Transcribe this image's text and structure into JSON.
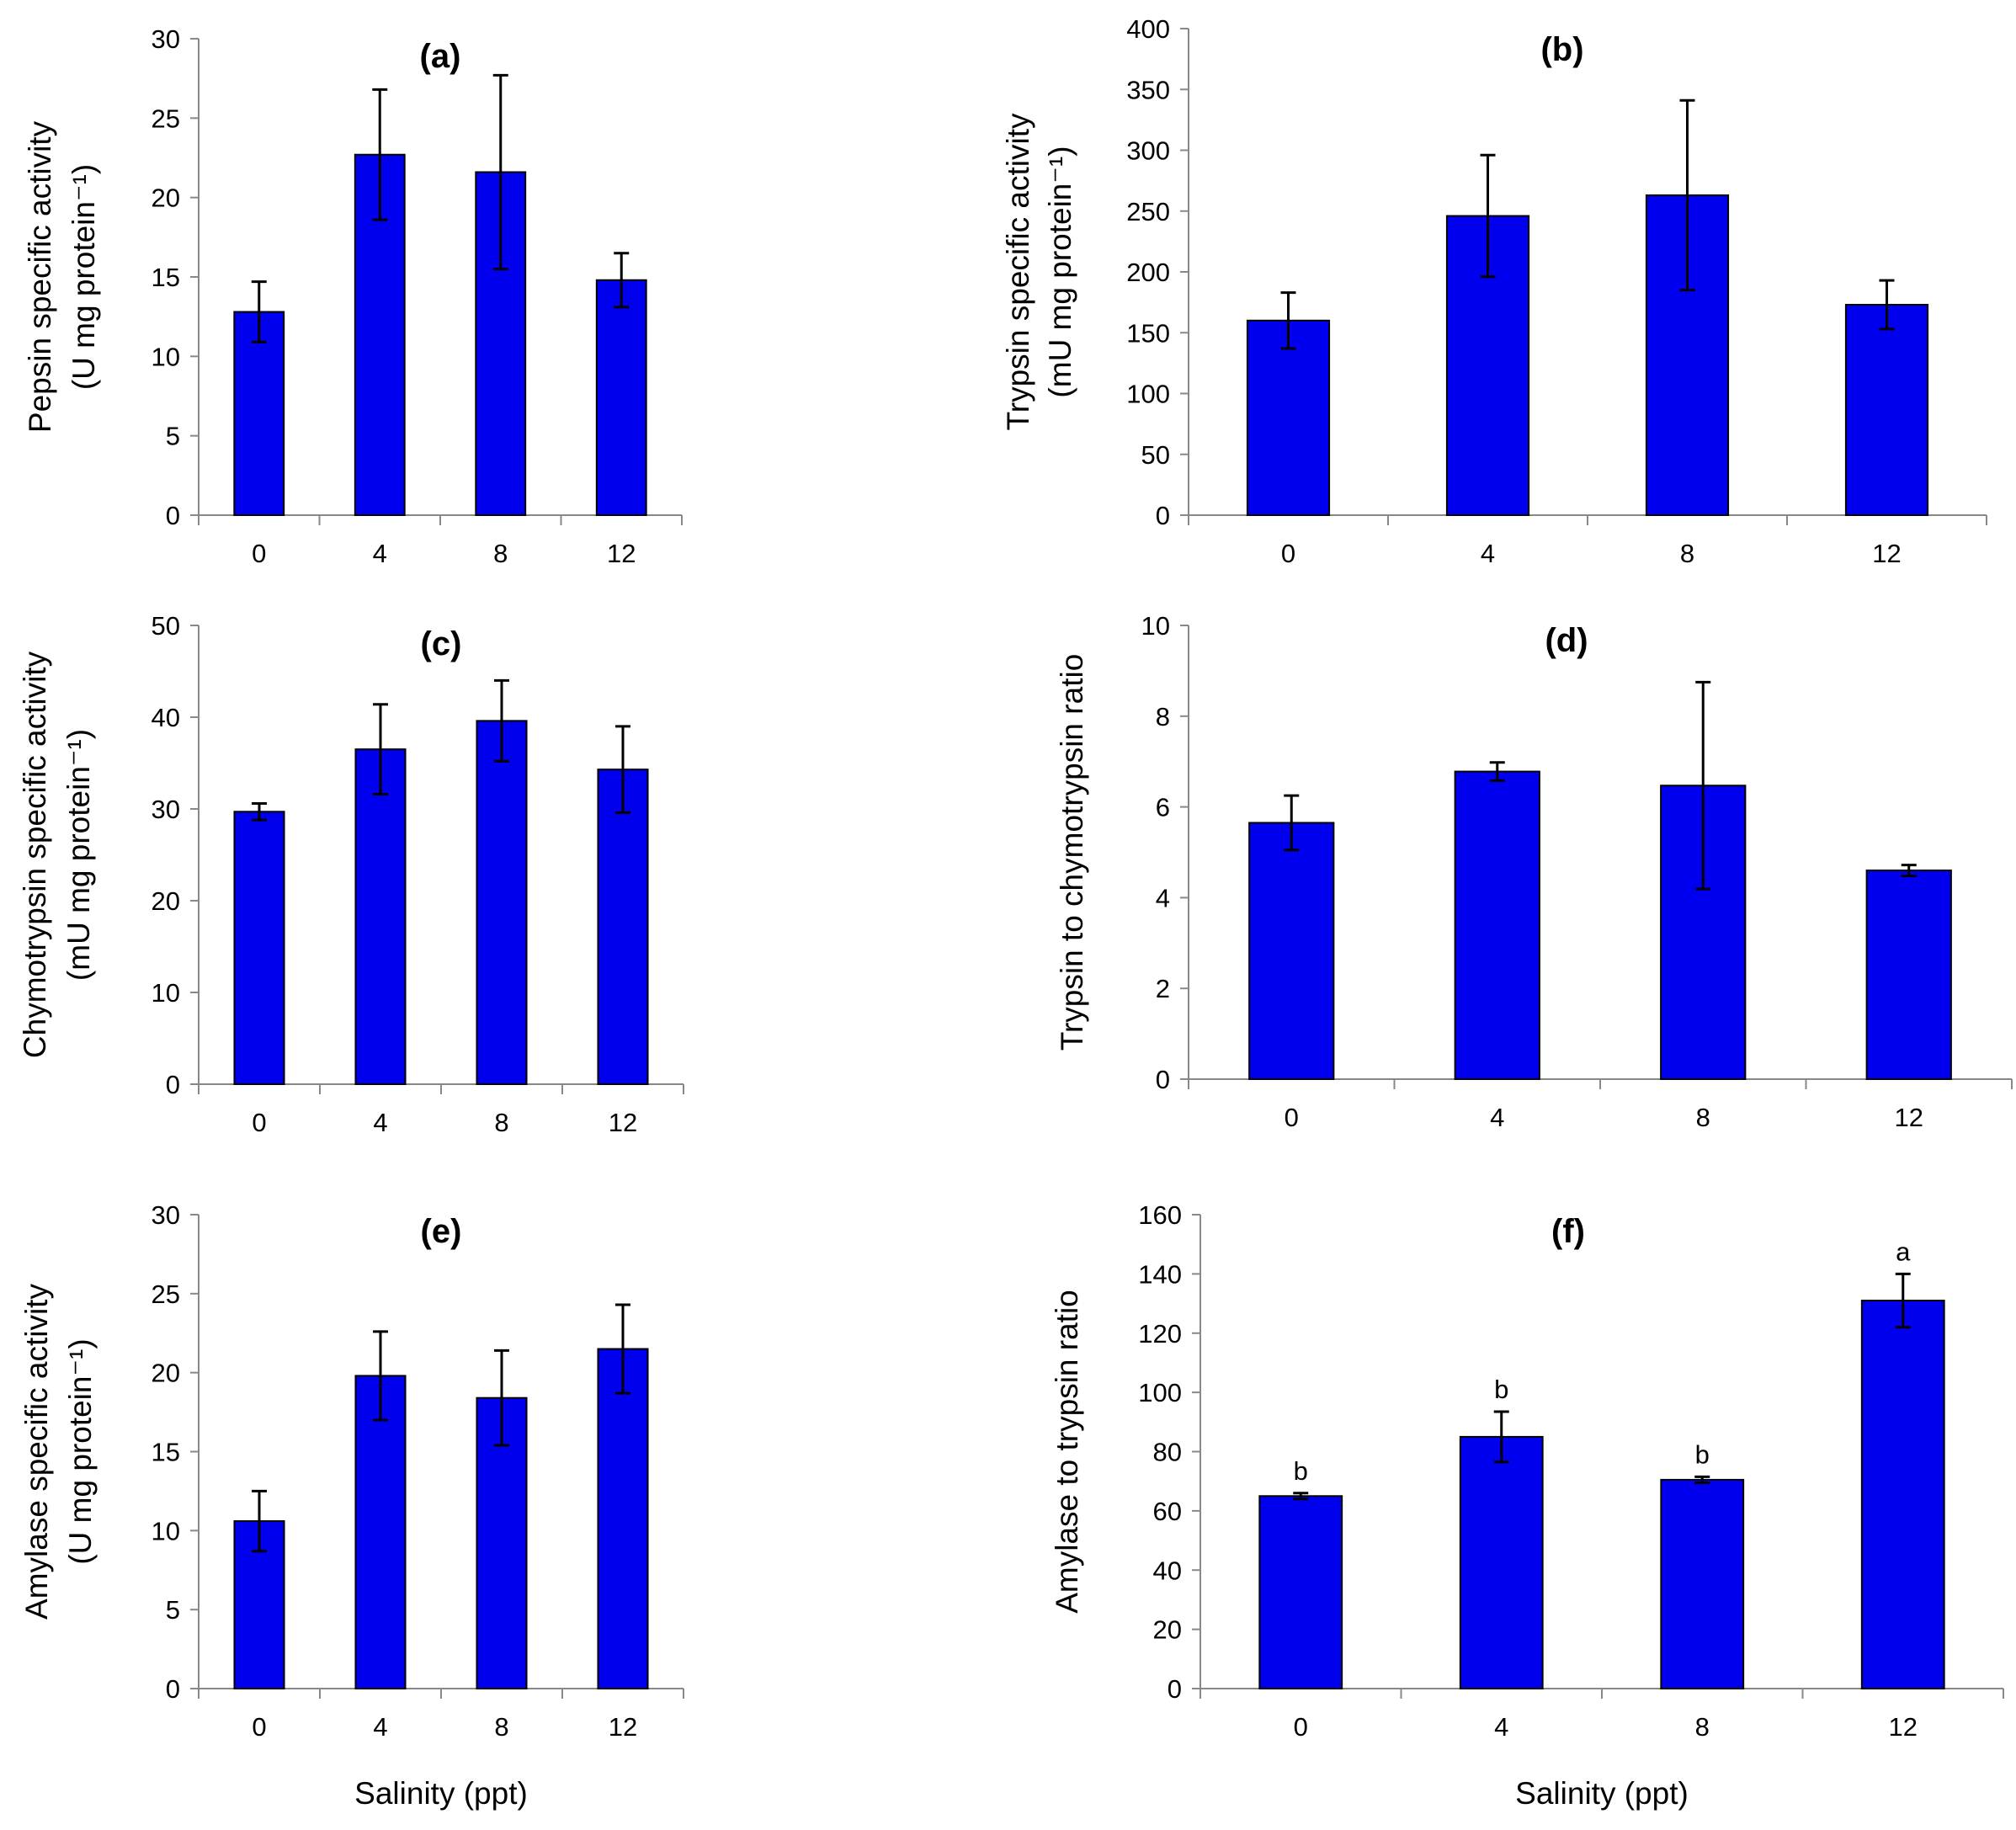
{
  "chart_data": [
    {
      "type": "bar",
      "title": "(a)",
      "categories": [
        "0",
        "4",
        "8",
        "12"
      ],
      "values": [
        12.8,
        22.7,
        21.6,
        14.8
      ],
      "errors": [
        1.9,
        4.1,
        6.1,
        1.7
      ],
      "ylabel_lines": [
        "Pepsin specific activity",
        "(U mg protein⁻¹)"
      ],
      "xlabel": "",
      "ylim": [
        0,
        30
      ],
      "yticks": [
        0,
        5,
        10,
        15,
        20,
        25,
        30
      ],
      "grid": false,
      "bar_color": "#0000EE"
    },
    {
      "type": "bar",
      "title": "(b)",
      "categories": [
        "0",
        "4",
        "8",
        "12"
      ],
      "values": [
        160,
        246,
        263,
        173
      ],
      "errors": [
        23,
        50,
        78,
        20
      ],
      "ylabel_lines": [
        "Trypsin specific activity",
        "(mU mg protein⁻¹)"
      ],
      "xlabel": "",
      "ylim": [
        0,
        400
      ],
      "yticks": [
        0,
        50,
        100,
        150,
        200,
        250,
        300,
        350,
        400
      ],
      "grid": false,
      "bar_color": "#0000EE"
    },
    {
      "type": "bar",
      "title": "(c)",
      "categories": [
        "0",
        "4",
        "8",
        "12"
      ],
      "values": [
        29.7,
        36.5,
        39.6,
        34.3
      ],
      "errors": [
        0.9,
        4.9,
        4.4,
        4.7
      ],
      "ylabel_lines": [
        "Chymotrypsin specific activity",
        "(mU mg protein⁻¹)"
      ],
      "xlabel": "",
      "ylim": [
        0,
        50
      ],
      "yticks": [
        0,
        10,
        20,
        30,
        40,
        50
      ],
      "grid": false,
      "bar_color": "#0000EE"
    },
    {
      "type": "bar",
      "title": "(d)",
      "categories": [
        "0",
        "4",
        "8",
        "12"
      ],
      "values": [
        5.65,
        6.78,
        6.47,
        4.6
      ],
      "errors": [
        0.6,
        0.2,
        2.28,
        0.12
      ],
      "ylabel_lines": [
        "Trypsin to chymotrypsin ratio"
      ],
      "xlabel": "",
      "ylim": [
        0,
        10
      ],
      "yticks": [
        0,
        2,
        4,
        6,
        8,
        10
      ],
      "grid": false,
      "bar_color": "#0000EE"
    },
    {
      "type": "bar",
      "title": "(e)",
      "categories": [
        "0",
        "4",
        "8",
        "12"
      ],
      "values": [
        10.6,
        19.8,
        18.4,
        21.5
      ],
      "errors": [
        1.9,
        2.8,
        3.0,
        2.8
      ],
      "ylabel_lines": [
        "Amylase specific activity",
        "(U mg protein⁻¹)"
      ],
      "xlabel": "Salinity (ppt)",
      "ylim": [
        0,
        30
      ],
      "yticks": [
        0,
        5,
        10,
        15,
        20,
        25,
        30
      ],
      "grid": false,
      "bar_color": "#0000EE"
    },
    {
      "type": "bar",
      "title": "(f)",
      "categories": [
        "0",
        "4",
        "8",
        "12"
      ],
      "values": [
        65,
        85,
        70.5,
        131
      ],
      "errors": [
        1,
        8.5,
        1,
        9
      ],
      "letters": [
        "b",
        "b",
        "b",
        "a"
      ],
      "ylabel_lines": [
        "Amylase to trypsin ratio"
      ],
      "xlabel": "Salinity (ppt)",
      "ylim": [
        0,
        160
      ],
      "yticks": [
        0,
        20,
        40,
        60,
        80,
        100,
        120,
        140,
        160
      ],
      "grid": false,
      "bar_color": "#0000EE"
    }
  ]
}
